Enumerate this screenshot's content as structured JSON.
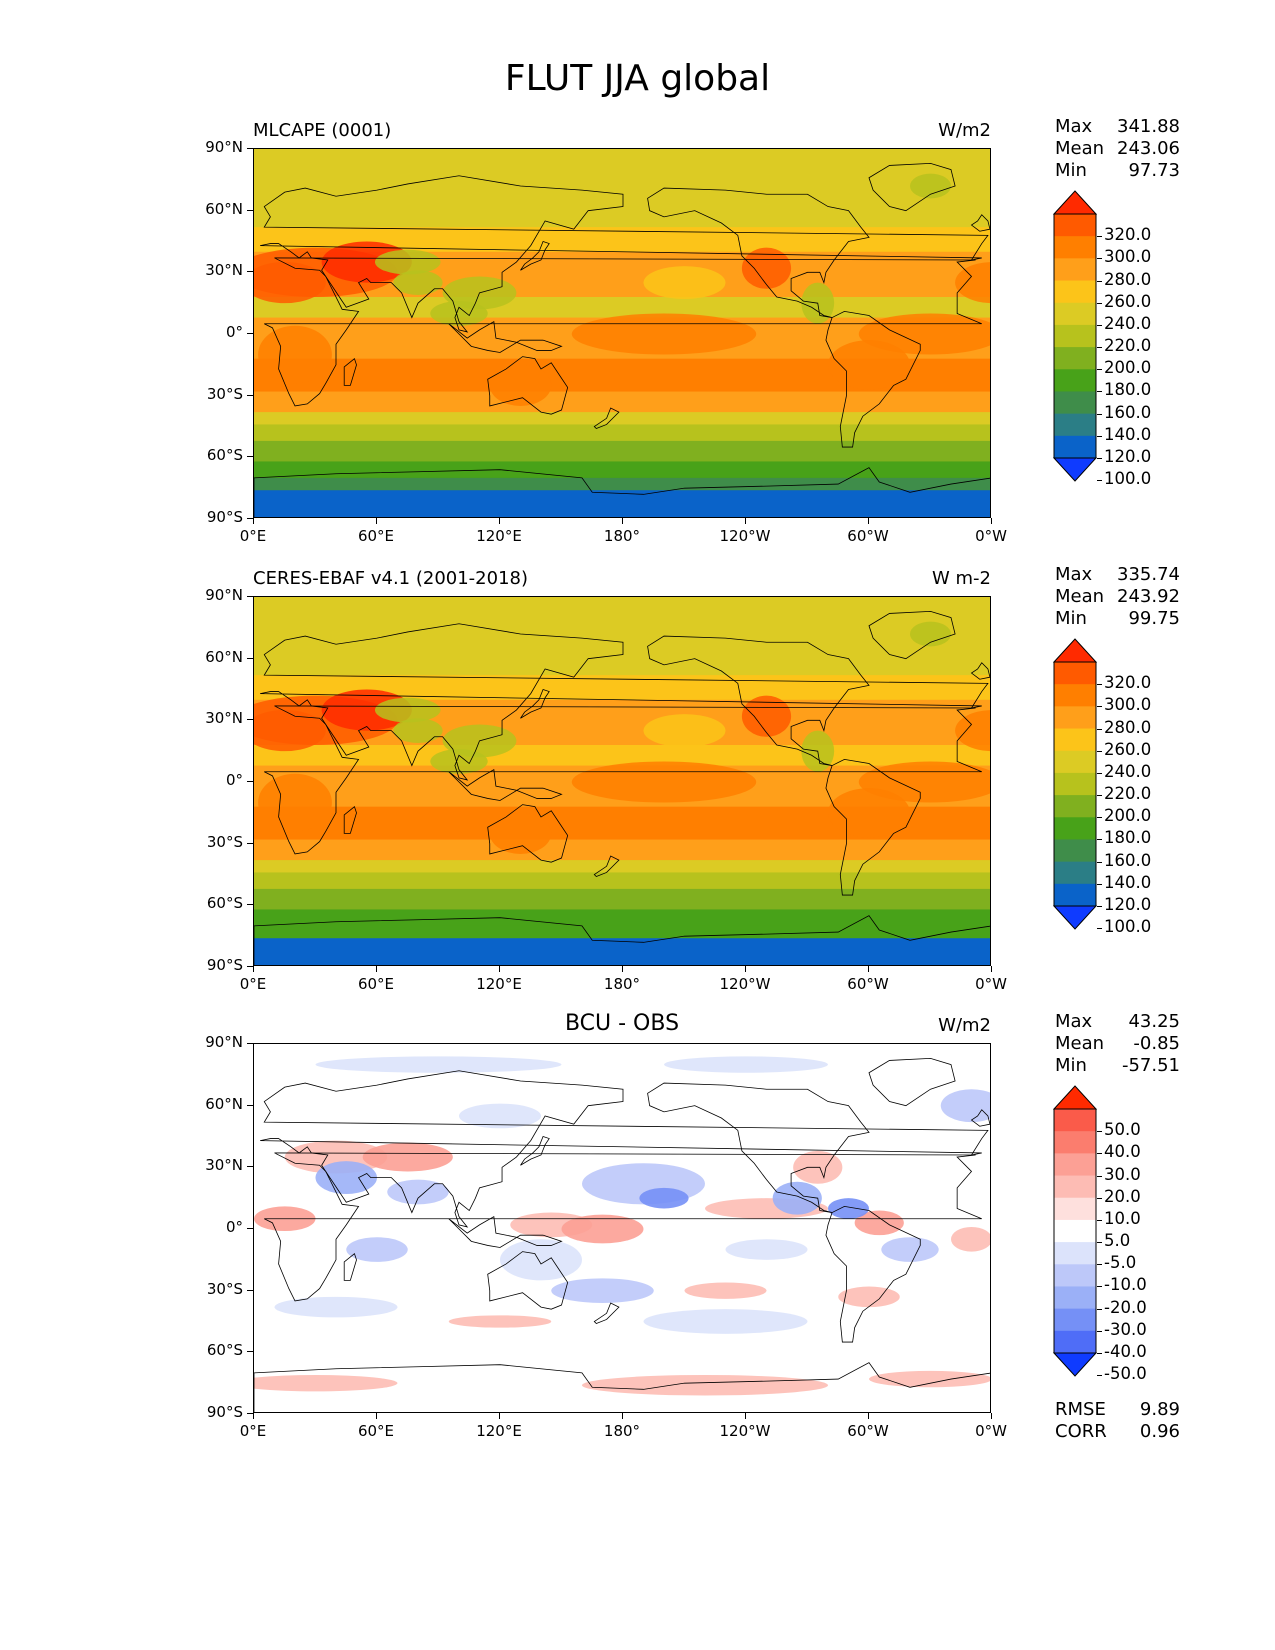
{
  "title": "FLUT JJA global",
  "axes": {
    "lat_labels": [
      "90°N",
      "60°N",
      "30°N",
      "0°",
      "30°S",
      "60°S",
      "90°S"
    ],
    "lon_labels": [
      "0°E",
      "60°E",
      "120°E",
      "180°",
      "120°W",
      "60°W",
      "0°W"
    ]
  },
  "panels": [
    {
      "title": "MLCAPE (0001)",
      "title_style": "left",
      "units": "W/m2",
      "stats": {
        "max_label": "Max",
        "max": "341.88",
        "mean_label": "Mean",
        "mean": "243.06",
        "min_label": "Min",
        "min": "97.73"
      },
      "colorbar": {
        "labels": [
          "320.0",
          "300.0",
          "280.0",
          "260.0",
          "240.0",
          "220.0",
          "200.0",
          "180.0",
          "160.0",
          "140.0",
          "120.0",
          "100.0"
        ],
        "colors": [
          "#ff2a00",
          "#ff5a00",
          "#ff7f00",
          "#ff9f1a",
          "#fcc419",
          "#dccb24",
          "#b7c21d",
          "#80b01f",
          "#48a219",
          "#3f8d4a",
          "#2b7e86",
          "#0a63c9",
          "#0f3bff"
        ]
      }
    },
    {
      "title": "CERES-EBAF v4.1 (2001-2018)",
      "title_style": "left",
      "units": "W m-2",
      "stats": {
        "max_label": "Max",
        "max": "335.74",
        "mean_label": "Mean",
        "mean": "243.92",
        "min_label": "Min",
        "min": "99.75"
      },
      "colorbar": {
        "labels": [
          "320.0",
          "300.0",
          "280.0",
          "260.0",
          "240.0",
          "220.0",
          "200.0",
          "180.0",
          "160.0",
          "140.0",
          "120.0",
          "100.0"
        ],
        "colors": [
          "#ff2a00",
          "#ff5a00",
          "#ff7f00",
          "#ff9f1a",
          "#fcc419",
          "#dccb24",
          "#b7c21d",
          "#80b01f",
          "#48a219",
          "#3f8d4a",
          "#2b7e86",
          "#0a63c9",
          "#0f3bff"
        ]
      }
    },
    {
      "title": "BCU - OBS",
      "title_style": "center",
      "units": "W/m2",
      "stats": {
        "max_label": "Max",
        "max": "43.25",
        "mean_label": "Mean",
        "mean": "-0.85",
        "min_label": "Min",
        "min": "-57.51"
      },
      "colorbar": {
        "labels": [
          "50.0",
          "40.0",
          "30.0",
          "20.0",
          "10.0",
          "5.0",
          "-5.0",
          "-10.0",
          "-20.0",
          "-30.0",
          "-40.0",
          "-50.0"
        ],
        "colors": [
          "#ff2a00",
          "#fa5b4a",
          "#fb7d6e",
          "#fca095",
          "#fdbcb4",
          "#fee0dd",
          "#ffffff",
          "#dce3fb",
          "#bdc8f9",
          "#9bb0f7",
          "#7590f6",
          "#4f6df7",
          "#0f3bff"
        ]
      },
      "metrics": {
        "rmse_label": "RMSE",
        "rmse": "9.89",
        "corr_label": "CORR",
        "corr": "0.96"
      }
    }
  ],
  "chart_data": [
    {
      "type": "heatmap",
      "title": "MLCAPE (0001)",
      "variable": "FLUT JJA global",
      "units": "W/m2",
      "xlim": [
        0,
        360
      ],
      "ylim": [
        -90,
        90
      ],
      "lat_ticks": [
        90,
        60,
        30,
        0,
        -30,
        -60,
        -90
      ],
      "lon_ticks": [
        0,
        60,
        120,
        180,
        240,
        300,
        360
      ],
      "max": 341.88,
      "mean": 243.06,
      "min": 97.73,
      "levels": [
        100,
        120,
        140,
        160,
        180,
        200,
        220,
        240,
        260,
        280,
        300,
        320
      ],
      "zonal_profile": {
        "lat": [
          90,
          75,
          60,
          45,
          30,
          15,
          0,
          -15,
          -30,
          -45,
          -60,
          -75,
          -90
        ],
        "values": [
          222,
          222,
          225,
          248,
          268,
          235,
          250,
          268,
          255,
          212,
          192,
          158,
          118
        ]
      }
    },
    {
      "type": "heatmap",
      "title": "CERES-EBAF v4.1 (2001-2018)",
      "variable": "FLUT JJA global",
      "units": "W m-2",
      "xlim": [
        0,
        360
      ],
      "ylim": [
        -90,
        90
      ],
      "lat_ticks": [
        90,
        60,
        30,
        0,
        -30,
        -60,
        -90
      ],
      "lon_ticks": [
        0,
        60,
        120,
        180,
        240,
        300,
        360
      ],
      "max": 335.74,
      "mean": 243.92,
      "min": 99.75,
      "levels": [
        100,
        120,
        140,
        160,
        180,
        200,
        220,
        240,
        260,
        280,
        300,
        320
      ],
      "zonal_profile": {
        "lat": [
          90,
          75,
          60,
          45,
          30,
          15,
          0,
          -15,
          -30,
          -45,
          -60,
          -75,
          -90
        ],
        "values": [
          225,
          224,
          228,
          250,
          265,
          238,
          252,
          266,
          250,
          218,
          195,
          168,
          118
        ]
      }
    },
    {
      "type": "heatmap",
      "title": "BCU - OBS",
      "variable": "FLUT JJA global",
      "units": "W/m2",
      "xlim": [
        0,
        360
      ],
      "ylim": [
        -90,
        90
      ],
      "lat_ticks": [
        90,
        60,
        30,
        0,
        -30,
        -60,
        -90
      ],
      "lon_ticks": [
        0,
        60,
        120,
        180,
        240,
        300,
        360
      ],
      "max": 43.25,
      "mean": -0.85,
      "min": -57.51,
      "levels": [
        -50,
        -40,
        -30,
        -20,
        -10,
        -5,
        5,
        10,
        20,
        30,
        40,
        50
      ],
      "rmse": 9.89,
      "corr": 0.96
    }
  ]
}
